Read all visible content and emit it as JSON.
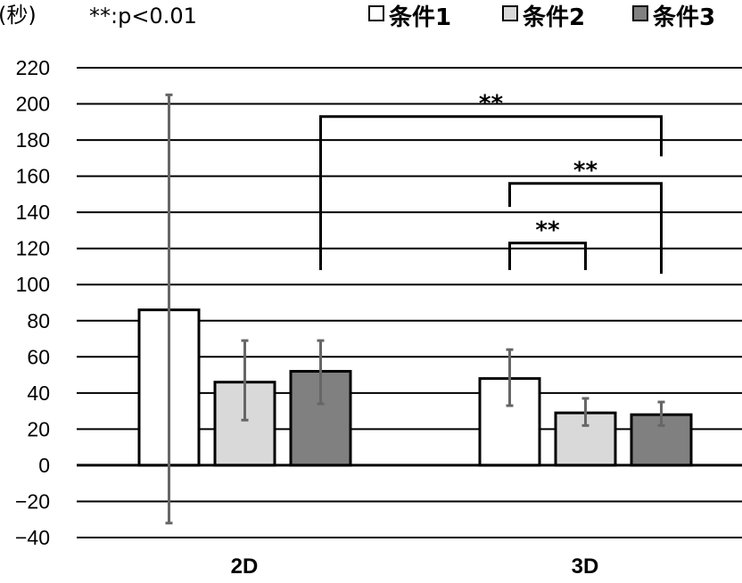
{
  "chart_data": {
    "type": "bar",
    "unit_label": "(秒)",
    "note": "**:p<0.01",
    "categories": [
      "2D",
      "3D"
    ],
    "ylim": [
      -40,
      220
    ],
    "yticks": [
      -40,
      -20,
      0,
      20,
      40,
      60,
      80,
      100,
      120,
      140,
      160,
      180,
      200,
      220
    ],
    "yticklabels": [
      "−40",
      "−20",
      "0",
      "20",
      "40",
      "60",
      "80",
      "100",
      "120",
      "140",
      "160",
      "180",
      "200",
      "220"
    ],
    "grid": true,
    "legend_position": "top-right",
    "series": [
      {
        "name": "条件1",
        "color": "#ffffff",
        "values": [
          86,
          48
        ],
        "error_low": [
          -32,
          33
        ],
        "error_high": [
          205,
          64
        ]
      },
      {
        "name": "条件2",
        "color": "#d9d9d9",
        "values": [
          46,
          29
        ],
        "error_low": [
          25,
          22
        ],
        "error_high": [
          69,
          37
        ]
      },
      {
        "name": "条件3",
        "color": "#808080",
        "values": [
          52,
          28
        ],
        "error_low": [
          34,
          22
        ],
        "error_high": [
          69,
          35
        ]
      }
    ],
    "significance": [
      {
        "label": "**",
        "from": {
          "category": 0,
          "series": 2
        },
        "to": {
          "category": 1,
          "series": 2
        },
        "y": 193
      },
      {
        "label": "**",
        "from": {
          "category": 1,
          "series": 0
        },
        "to": {
          "category": 1,
          "series": 2
        },
        "y": 156
      },
      {
        "label": "**",
        "from": {
          "category": 1,
          "series": 0
        },
        "to": {
          "category": 1,
          "series": 1
        },
        "y": 123
      }
    ]
  }
}
